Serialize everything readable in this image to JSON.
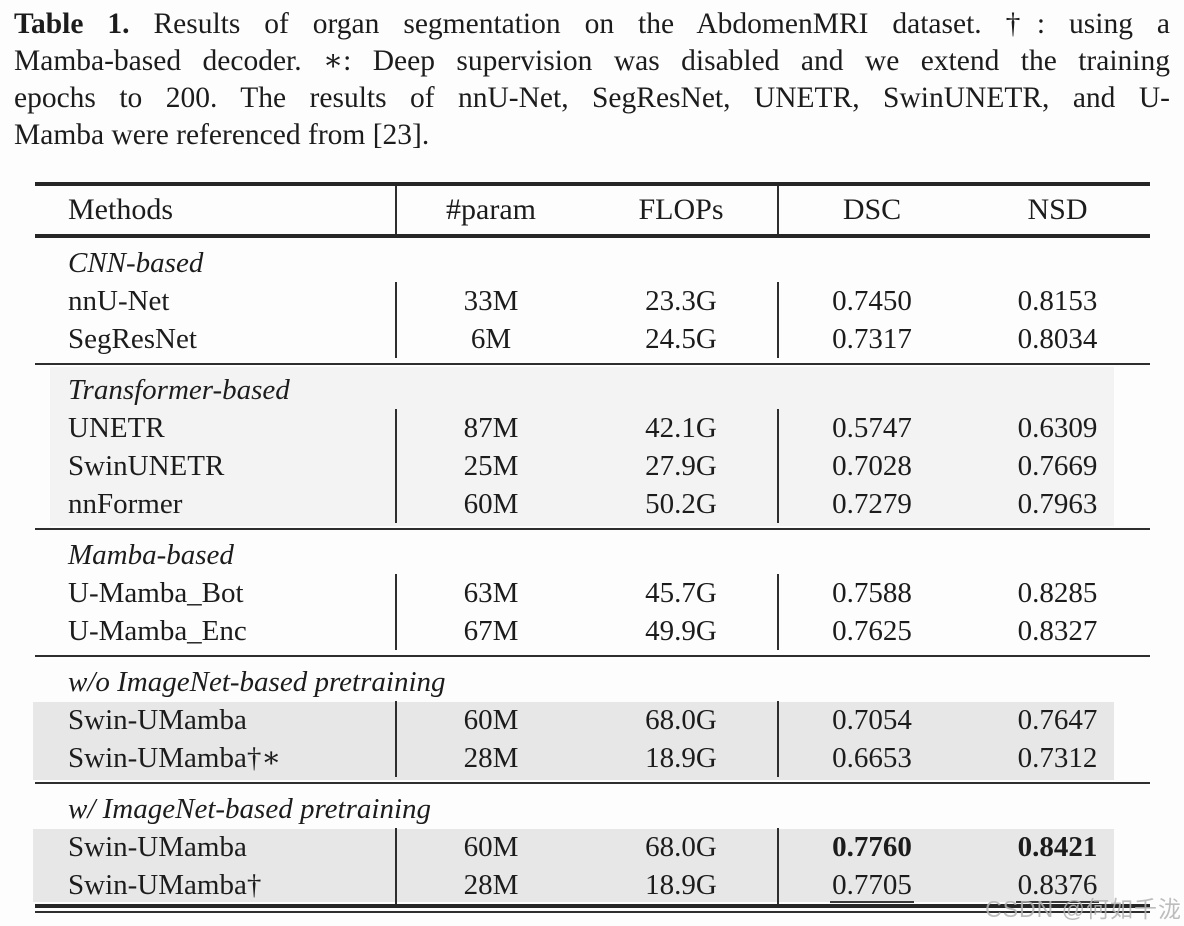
{
  "caption": {
    "label": "Table 1.",
    "line1": "Results of organ segmentation on the AbdomenMRI dataset. †: using a",
    "line2": "Mamba-based decoder. ∗: Deep supervision was disabled and we extend the training",
    "line3": "epochs to 200. The results of nnU-Net, SegResNet, UNETR, SwinUNETR, and U-",
    "line4": "Mamba were referenced from [23]."
  },
  "table": {
    "columns": [
      "Methods",
      "#param",
      "FLOPs",
      "DSC",
      "NSD"
    ],
    "sections": [
      {
        "header": "CNN-based",
        "highlight": "none",
        "rows": [
          {
            "method": "nnU-Net",
            "param": "33M",
            "flops": "23.3G",
            "dsc": "0.7450",
            "nsd": "0.8153"
          },
          {
            "method": "SegResNet",
            "param": "6M",
            "flops": "24.5G",
            "dsc": "0.7317",
            "nsd": "0.8034"
          }
        ]
      },
      {
        "header": "Transformer-based",
        "highlight": "full",
        "rows": [
          {
            "method": "UNETR",
            "param": "87M",
            "flops": "42.1G",
            "dsc": "0.5747",
            "nsd": "0.6309"
          },
          {
            "method": "SwinUNETR",
            "param": "25M",
            "flops": "27.9G",
            "dsc": "0.7028",
            "nsd": "0.7669"
          },
          {
            "method": "nnFormer",
            "param": "60M",
            "flops": "50.2G",
            "dsc": "0.7279",
            "nsd": "0.7963"
          }
        ]
      },
      {
        "header": "Mamba-based",
        "highlight": "none",
        "rows": [
          {
            "method": "U-Mamba_Bot",
            "param": "63M",
            "flops": "45.7G",
            "dsc": "0.7588",
            "nsd": "0.8285"
          },
          {
            "method": "U-Mamba_Enc",
            "param": "67M",
            "flops": "49.9G",
            "dsc": "0.7625",
            "nsd": "0.8327"
          }
        ]
      },
      {
        "header": "w/o ImageNet-based pretraining",
        "highlight": "rows",
        "rows": [
          {
            "method": "Swin-UMamba",
            "param": "60M",
            "flops": "68.0G",
            "dsc": "0.7054",
            "nsd": "0.7647"
          },
          {
            "method": "Swin-UMamba†∗",
            "param": "28M",
            "flops": "18.9G",
            "dsc": "0.6653",
            "nsd": "0.7312"
          }
        ]
      },
      {
        "header": "w/ ImageNet-based pretraining",
        "highlight": "rows",
        "rows": [
          {
            "method": "Swin-UMamba",
            "param": "60M",
            "flops": "68.0G",
            "dsc": "0.7760",
            "nsd": "0.8421",
            "dsc_style": "bold",
            "nsd_style": "bold"
          },
          {
            "method": "Swin-UMamba†",
            "param": "28M",
            "flops": "18.9G",
            "dsc": "0.7705",
            "nsd": "0.8376",
            "dsc_style": "underline",
            "nsd_style": "underline"
          }
        ]
      }
    ]
  },
  "watermark": "CSDN @何如千泷",
  "colors": {
    "text": "#1c1c1c",
    "rule": "#2e2e2e",
    "section_highlight_light": "#f3f3f4",
    "row_highlight": "#e7e7e8",
    "watermark": "#b3b3b3"
  }
}
